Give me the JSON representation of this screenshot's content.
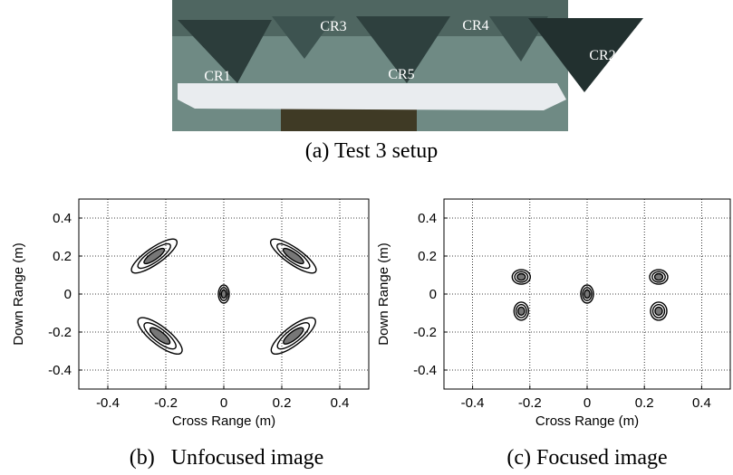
{
  "figure": {
    "labels": [
      "CR1",
      "CR3",
      "CR5",
      "CR4",
      "CR2"
    ],
    "caption": "(a) Test 3 setup"
  },
  "chart_data": [
    {
      "type": "scatter",
      "xlabel": "Cross Range (m)",
      "ylabel": "Down Range (m)",
      "caption": "(b)   Unfocused image",
      "x": [
        -0.24,
        0.24,
        0,
        -0.22,
        0.24
      ],
      "y": [
        0.2,
        0.2,
        0,
        -0.22,
        -0.22
      ],
      "xlim": [
        -0.5,
        0.5
      ],
      "ylim": [
        -0.5,
        0.5
      ],
      "xticks": [
        -0.4,
        -0.2,
        0,
        0.2,
        0.4
      ],
      "yticks": [
        -0.4,
        -0.2,
        0,
        0.2,
        0.4
      ],
      "grid": true,
      "color": "#000000"
    },
    {
      "type": "scatter",
      "xlabel": "Cross Range (m)",
      "ylabel": "Down Range (m)",
      "caption": "(c) Focused image",
      "x": [
        -0.23,
        -0.23,
        0,
        0.25,
        0.25
      ],
      "y": [
        0.09,
        -0.09,
        0,
        0.09,
        -0.09
      ],
      "xlim": [
        -0.5,
        0.5
      ],
      "ylim": [
        -0.5,
        0.5
      ],
      "xticks": [
        -0.4,
        -0.2,
        0,
        0.2,
        0.4
      ],
      "yticks": [
        -0.4,
        -0.2,
        0,
        0.2,
        0.4
      ],
      "grid": true,
      "color": "#000000"
    }
  ]
}
